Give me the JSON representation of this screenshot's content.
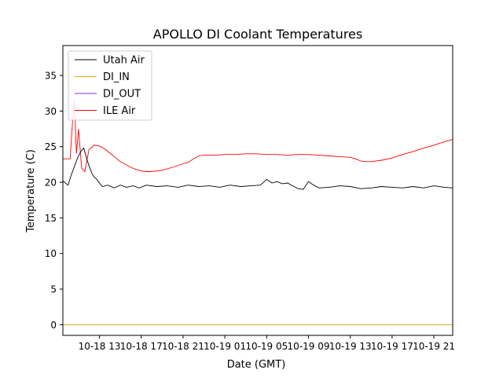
{
  "chart_data": {
    "type": "line",
    "title": "APOLLO DI Coolant Temperatures",
    "xlabel": "Date (GMT)",
    "ylabel": "Temperature (C)",
    "x_unit": "hours since 10-18 00:00 GMT",
    "xlim": [
      9.5,
      46.8
    ],
    "ylim": [
      -1.5,
      39.2
    ],
    "x_ticks": [
      {
        "value": 13,
        "label": "10-18 13"
      },
      {
        "value": 17,
        "label": "10-18 17"
      },
      {
        "value": 21,
        "label": "10-18 21"
      },
      {
        "value": 25,
        "label": "10-19 01"
      },
      {
        "value": 29,
        "label": "10-19 05"
      },
      {
        "value": 33,
        "label": "10-19 09"
      },
      {
        "value": 37,
        "label": "10-19 13"
      },
      {
        "value": 41,
        "label": "10-19 17"
      },
      {
        "value": 45,
        "label": "10-19 21"
      }
    ],
    "y_ticks": [
      {
        "value": 0,
        "label": "0"
      },
      {
        "value": 5,
        "label": "5"
      },
      {
        "value": 10,
        "label": "10"
      },
      {
        "value": 15,
        "label": "15"
      },
      {
        "value": 20,
        "label": "20"
      },
      {
        "value": 25,
        "label": "25"
      },
      {
        "value": 30,
        "label": "30"
      },
      {
        "value": 35,
        "label": "35"
      }
    ],
    "legend_position": "top-left",
    "series": [
      {
        "name": "Utah Air",
        "color": "#000000",
        "x": [
          9.5,
          10.0,
          10.3,
          10.6,
          10.9,
          11.2,
          11.5,
          11.8,
          12.1,
          12.3,
          12.5,
          12.7,
          12.9,
          13.1,
          13.3,
          13.8,
          14.4,
          15.0,
          15.6,
          16.2,
          16.8,
          17.5,
          18.5,
          19.5,
          20.5,
          21.5,
          22.5,
          23.5,
          24.5,
          25.5,
          26.5,
          27.5,
          28.4,
          29.0,
          29.5,
          30.0,
          30.5,
          31.0,
          31.5,
          32.0,
          32.5,
          33.0,
          33.5,
          34.0,
          35.0,
          36.0,
          37.0,
          38.0,
          39.0,
          40.0,
          41.0,
          42.0,
          43.0,
          44.0,
          45.0,
          46.0,
          46.8
        ],
        "y": [
          20.2,
          19.6,
          21.0,
          22.2,
          23.4,
          24.3,
          24.8,
          23.2,
          21.9,
          21.2,
          20.7,
          20.5,
          20.1,
          19.7,
          19.4,
          19.6,
          19.2,
          19.6,
          19.3,
          19.5,
          19.2,
          19.6,
          19.4,
          19.5,
          19.3,
          19.6,
          19.4,
          19.5,
          19.3,
          19.6,
          19.4,
          19.5,
          19.6,
          20.4,
          19.9,
          20.1,
          19.8,
          19.9,
          19.5,
          19.1,
          19.0,
          20.1,
          19.6,
          19.2,
          19.3,
          19.5,
          19.4,
          19.1,
          19.2,
          19.4,
          19.3,
          19.2,
          19.4,
          19.2,
          19.5,
          19.3,
          19.2
        ]
      },
      {
        "name": "DI_IN",
        "color": "#e6b400",
        "x": [
          9.5,
          46.8
        ],
        "y": [
          0,
          0
        ]
      },
      {
        "name": "DI_OUT",
        "color": "#8a2be2",
        "x": [
          9.5,
          46.8
        ],
        "y": [
          0,
          0
        ]
      },
      {
        "name": "ILE Air",
        "color": "#ff0000",
        "x": [
          9.5,
          10.2,
          10.4,
          10.6,
          10.8,
          11.0,
          11.3,
          11.6,
          12.0,
          12.5,
          13.0,
          13.5,
          14.0,
          14.5,
          15.0,
          15.5,
          16.0,
          16.5,
          17.0,
          17.5,
          18.0,
          19.0,
          20.0,
          21.0,
          21.5,
          22.0,
          22.5,
          23.0,
          24.0,
          25.0,
          26.0,
          27.0,
          28.0,
          29.0,
          30.0,
          31.0,
          32.0,
          33.0,
          34.0,
          35.0,
          36.0,
          37.0,
          37.5,
          38.0,
          38.5,
          39.0,
          40.0,
          41.0,
          42.0,
          43.0,
          44.0,
          45.0,
          46.0,
          46.8
        ],
        "y": [
          23.3,
          23.3,
          28.0,
          31.5,
          24.0,
          27.5,
          22.0,
          21.5,
          24.6,
          25.2,
          25.1,
          24.7,
          24.1,
          23.5,
          22.9,
          22.5,
          22.1,
          21.8,
          21.6,
          21.5,
          21.5,
          21.7,
          22.1,
          22.6,
          22.8,
          23.3,
          23.7,
          23.8,
          23.8,
          23.9,
          23.9,
          24.0,
          24.0,
          23.9,
          23.9,
          23.8,
          23.9,
          23.9,
          23.8,
          23.7,
          23.6,
          23.5,
          23.3,
          23.0,
          22.9,
          22.9,
          23.1,
          23.4,
          23.9,
          24.3,
          24.8,
          25.2,
          25.7,
          26.0
        ]
      }
    ]
  }
}
